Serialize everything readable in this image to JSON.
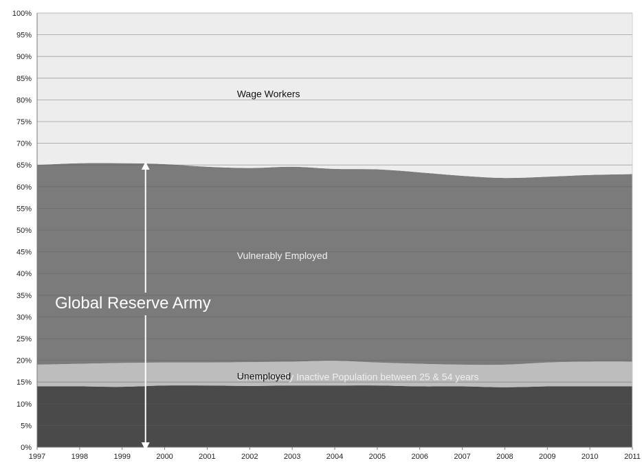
{
  "chart_data": {
    "type": "area",
    "stacked": true,
    "x": [
      1997,
      1998,
      1999,
      2000,
      2001,
      2002,
      2003,
      2004,
      2005,
      2006,
      2007,
      2008,
      2009,
      2010,
      2011
    ],
    "y_ticks": [
      "0%",
      "5%",
      "10%",
      "15%",
      "20%",
      "25%",
      "30%",
      "35%",
      "40%",
      "45%",
      "50%",
      "55%",
      "60%",
      "65%",
      "70%",
      "75%",
      "80%",
      "85%",
      "90%",
      "95%",
      "100%"
    ],
    "ylim": [
      0,
      100
    ],
    "grid": true,
    "series": [
      {
        "name": "Economically  Inactive Population between 25 & 54 years",
        "color": "#4a4a4a",
        "label_color": "#f0f0f0",
        "values": [
          14,
          14,
          13.9,
          14.2,
          14.2,
          14.1,
          14.2,
          14.2,
          14.2,
          14,
          14,
          13.8,
          14,
          14,
          14
        ]
      },
      {
        "name": "Unemployed",
        "color": "#bdbdbd",
        "label_color": "#111111",
        "values": [
          5,
          5.2,
          5.5,
          5.3,
          5.3,
          5.5,
          5.5,
          5.7,
          5.3,
          5.2,
          5,
          5.2,
          5.5,
          5.7,
          5.7
        ]
      },
      {
        "name": "Vulnerably Employed",
        "color": "#7b7b7b",
        "label_color": "#f0f0f0",
        "values": [
          46,
          46.2,
          46,
          45.7,
          45.1,
          44.7,
          44.9,
          44.2,
          44.5,
          44.1,
          43.5,
          43,
          42.8,
          43,
          43.2
        ]
      },
      {
        "name": "Wage Workers",
        "color": "#ededed",
        "label_color": "#111111",
        "values": [
          35,
          34.6,
          34.6,
          34.8,
          35.4,
          35.7,
          35.4,
          35.9,
          36,
          36.7,
          37.5,
          38,
          37.7,
          37.3,
          37.1
        ]
      }
    ],
    "annotation": {
      "text": "Global Reserve Army",
      "x": 1999.55,
      "y_from": 0,
      "y_to": 65,
      "color": "#ffffff"
    }
  }
}
